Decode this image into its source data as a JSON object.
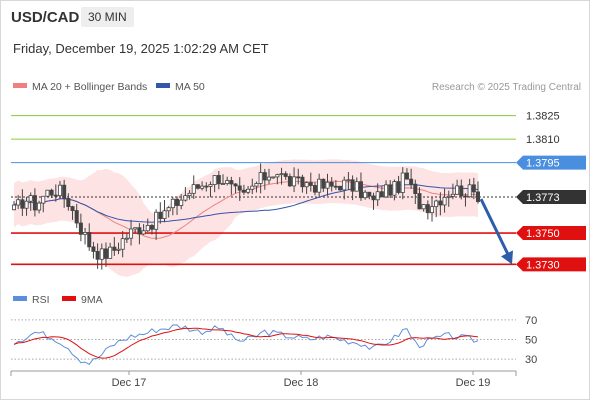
{
  "header": {
    "symbol": "USD/CAD",
    "timeframe": "30 MIN",
    "datetime": "Friday, December 19, 2025 1:02:29 AM CET"
  },
  "source": "Research © 2025 Trading Central",
  "colors": {
    "resistance_green": "#8cc63f",
    "pivot_blue": "#4a8ee0",
    "support_red": "#e01010",
    "current_price": "#333333",
    "candle_up": "#444444",
    "band_fill": "#fde3e3",
    "ma20": "#f08080",
    "ma50": "#3355aa",
    "forecast_arrow": "#2d5ea8",
    "rsi_line": "#5b8fd9",
    "rsi_ma": "#e01010"
  },
  "chart_data": [
    {
      "type": "candlestick",
      "title": "USD/CAD",
      "legend": [
        {
          "name": "MA 20 + Bollinger Bands",
          "color": "#f08080",
          "icon": "swatch"
        },
        {
          "name": "MA 50",
          "color": "#3355aa",
          "icon": "swatch"
        }
      ],
      "ylim": [
        1.372,
        1.3835
      ],
      "x_labels": [
        "Dec 17",
        "Dec 18",
        "Dec 19"
      ],
      "levels": [
        {
          "label": "1.3825",
          "value": 1.3825,
          "kind": "resistance",
          "color": "#8cc63f"
        },
        {
          "label": "1.3810",
          "value": 1.381,
          "kind": "resistance",
          "color": "#8cc63f"
        },
        {
          "label": "1.3795",
          "value": 1.3795,
          "kind": "pivot",
          "color": "#4a8ee0"
        },
        {
          "label": "1.3773",
          "value": 1.3773,
          "kind": "current",
          "color": "#333333"
        },
        {
          "label": "1.3750",
          "value": 1.375,
          "kind": "support",
          "color": "#e01010"
        },
        {
          "label": "1.3730",
          "value": 1.373,
          "kind": "support",
          "color": "#e01010"
        }
      ],
      "forecast": {
        "from": 1.3773,
        "to": 1.373,
        "direction": "down"
      },
      "close_path": [
        1.3764,
        1.3772,
        1.3768,
        1.3776,
        1.3778,
        1.377,
        1.3755,
        1.3742,
        1.3736,
        1.3738,
        1.3746,
        1.3752,
        1.3755,
        1.3758,
        1.3764,
        1.377,
        1.3776,
        1.378,
        1.3784,
        1.3786,
        1.3778,
        1.3772,
        1.378,
        1.3786,
        1.379,
        1.3784,
        1.3781,
        1.3782,
        1.378,
        1.3779,
        1.3782,
        1.378,
        1.3776,
        1.377,
        1.3778,
        1.3778,
        1.3786,
        1.377,
        1.3768,
        1.3772,
        1.3777,
        1.3778,
        1.3776,
        1.3774
      ]
    },
    {
      "type": "line",
      "title": "RSI",
      "legend": [
        {
          "name": "RSI",
          "color": "#5b8fd9",
          "icon": "swatch"
        },
        {
          "name": "9MA",
          "color": "#e01010",
          "icon": "swatch"
        }
      ],
      "ylim": [
        25,
        75
      ],
      "y_ticks": [
        70,
        50,
        30
      ],
      "reference_lines": [
        70,
        50,
        30
      ],
      "rsi_path": [
        48,
        52,
        58,
        54,
        50,
        42,
        30,
        26,
        34,
        44,
        50,
        54,
        56,
        60,
        62,
        64,
        62,
        58,
        60,
        62,
        52,
        48,
        52,
        58,
        56,
        54,
        52,
        50,
        52,
        53,
        50,
        48,
        46,
        40,
        46,
        52,
        62,
        44,
        48,
        52,
        54,
        52,
        50,
        48
      ]
    }
  ]
}
